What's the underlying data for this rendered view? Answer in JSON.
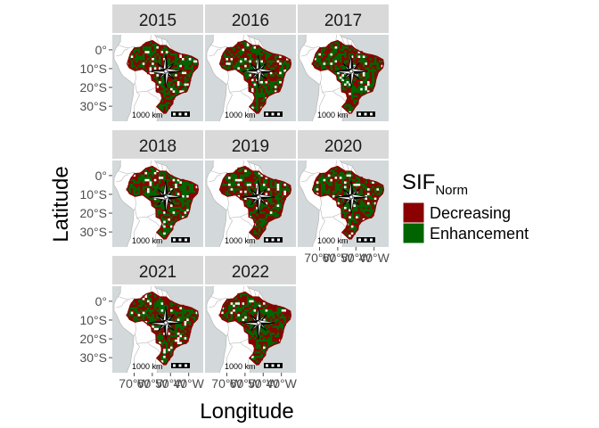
{
  "panels": [
    {
      "year": "2015",
      "pattern": 0
    },
    {
      "year": "2016",
      "pattern": 1
    },
    {
      "year": "2017",
      "pattern": 2
    },
    {
      "year": "2018",
      "pattern": 3
    },
    {
      "year": "2019",
      "pattern": 4
    },
    {
      "year": "2020",
      "pattern": 5
    },
    {
      "year": "2021",
      "pattern": 6
    },
    {
      "year": "2022",
      "pattern": 7
    }
  ],
  "axes": {
    "xlabel": "Longitude",
    "ylabel": "Latitude",
    "lat_ticks": [
      {
        "value": 0,
        "label": "0°"
      },
      {
        "value": -10,
        "label": "10°S"
      },
      {
        "value": -20,
        "label": "20°S"
      },
      {
        "value": -30,
        "label": "30°S"
      }
    ],
    "lon_ticks": [
      {
        "value": -70,
        "label": "70°W"
      },
      {
        "value": -60,
        "label": "60°W"
      },
      {
        "value": -50,
        "label": "50°W"
      },
      {
        "value": -40,
        "label": "40°W"
      }
    ],
    "lon_range": [
      -82,
      -32
    ],
    "lat_range": [
      -38,
      8
    ]
  },
  "scale_bar": {
    "label": "1000 km"
  },
  "legend": {
    "title_main": "SIF",
    "title_sub": "Norm",
    "items": [
      {
        "label": "Decreasing",
        "color": "#8b0000"
      },
      {
        "label": "Enhancement",
        "color": "#006400"
      }
    ]
  },
  "colors": {
    "panel_bg": "#d3d8da",
    "strip_bg": "#d9d9d9",
    "decreasing": "#8b0000",
    "enhancement": "#006400",
    "country_border": "#b8b8b8",
    "country_fill": "#ffffff"
  },
  "map_layers": {
    "compass_rose": "compass-rose-icon",
    "north_arrow": "north-arrow-icon"
  }
}
